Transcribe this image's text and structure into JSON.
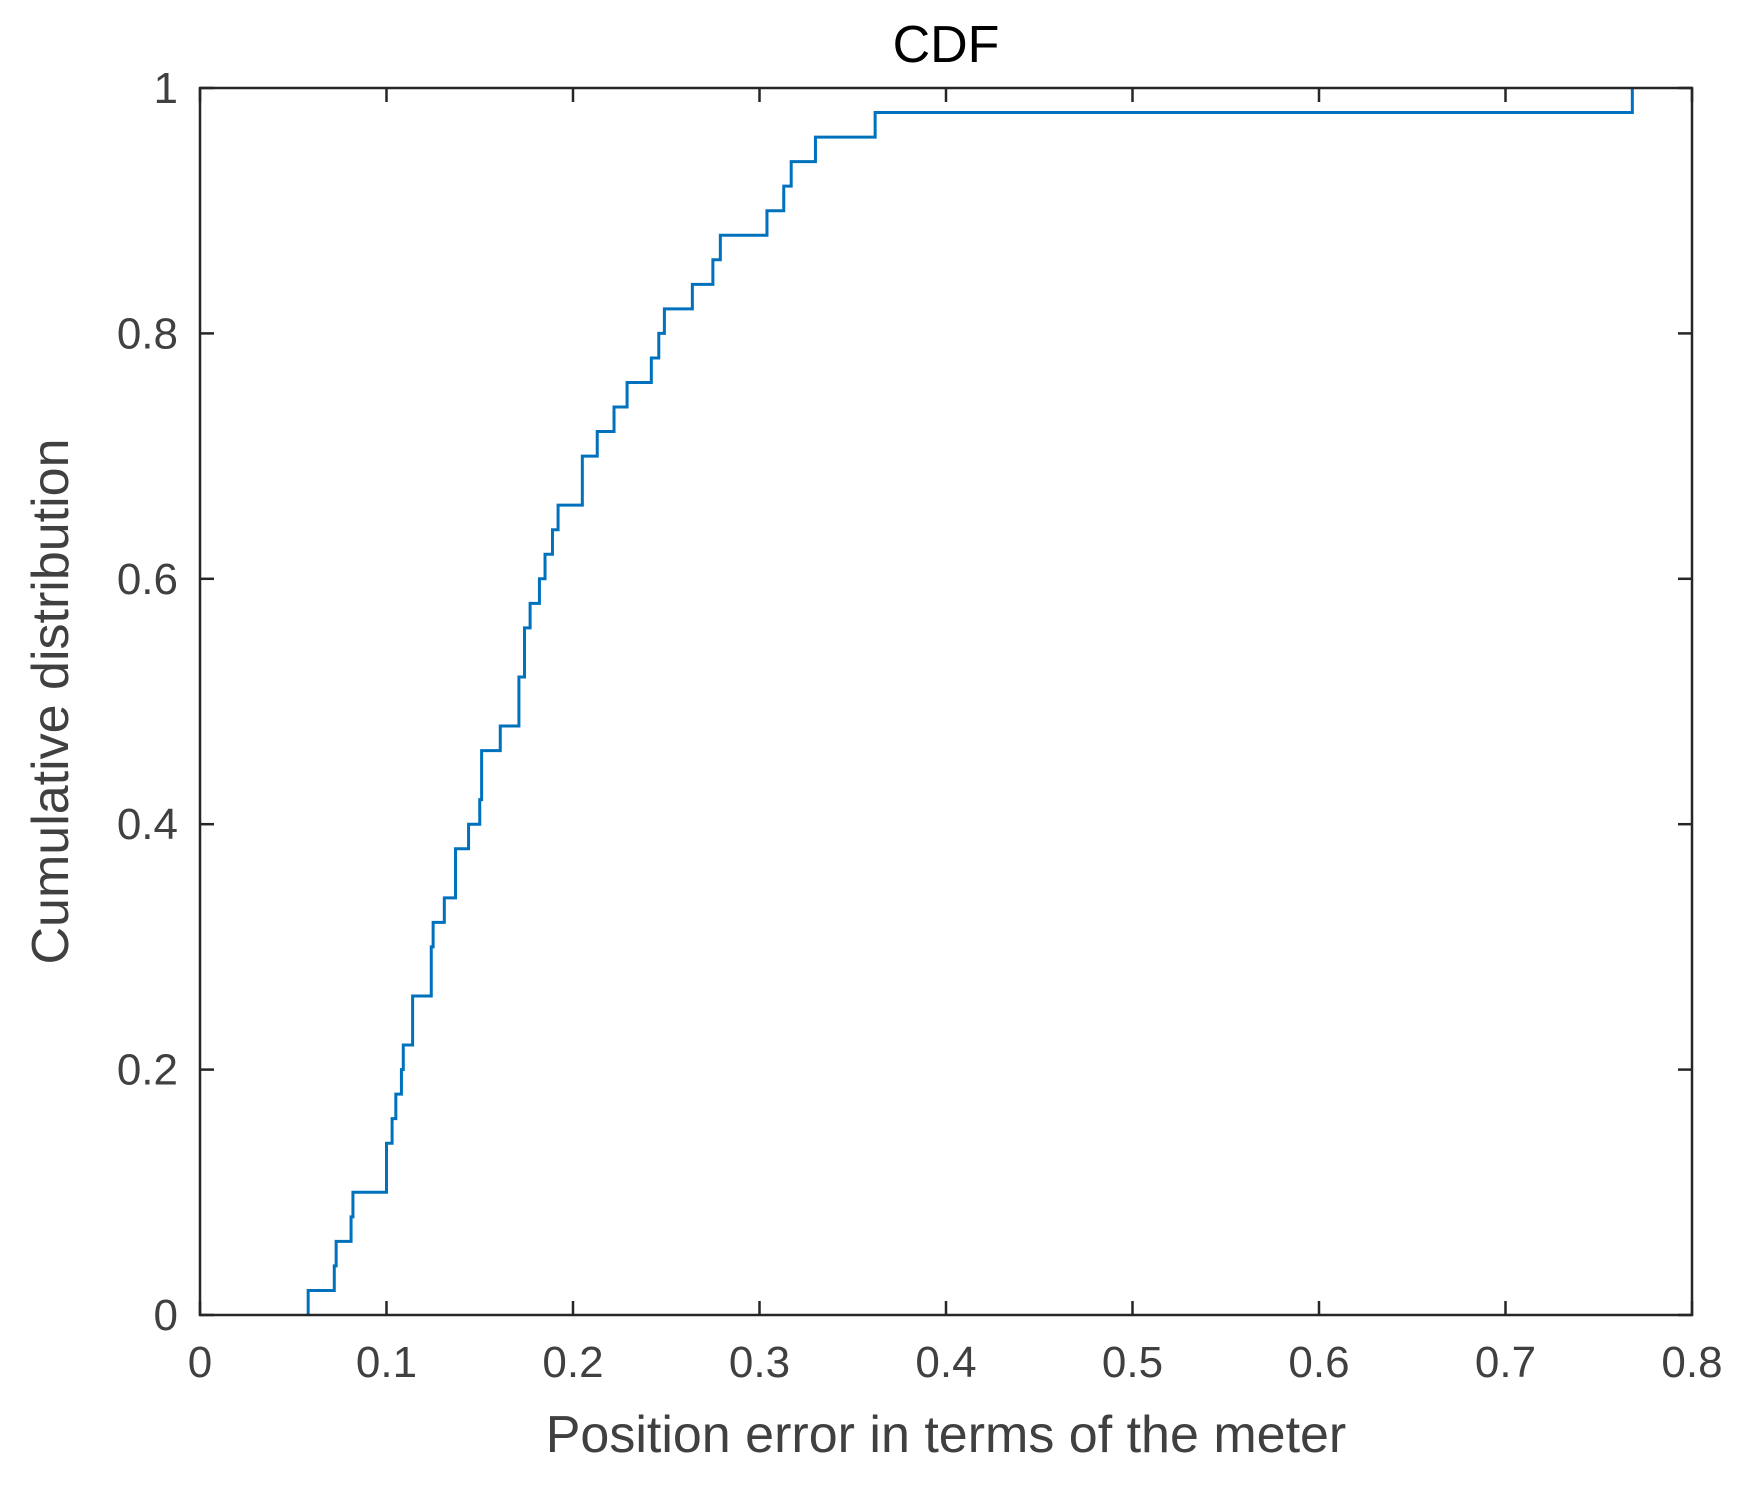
{
  "chart_data": {
    "type": "line",
    "step": true,
    "title": "CDF",
    "xlabel": "Position error in terms of the meter",
    "ylabel": "Cumulative distribution",
    "xlim": [
      0,
      0.8
    ],
    "ylim": [
      0,
      1
    ],
    "xticks": [
      "0",
      "0.1",
      "0.2",
      "0.3",
      "0.4",
      "0.5",
      "0.6",
      "0.7",
      "0.8"
    ],
    "yticks": [
      "0",
      "0.2",
      "0.4",
      "0.6",
      "0.8",
      "1"
    ],
    "grid": false,
    "line_color": "#0072BD",
    "series": [
      {
        "x": [
          0.058,
          0.072,
          0.073,
          0.081,
          0.082,
          0.1,
          0.103,
          0.105,
          0.108,
          0.109,
          0.114,
          0.124,
          0.125,
          0.131,
          0.137,
          0.144,
          0.15,
          0.151,
          0.161,
          0.171,
          0.174,
          0.177,
          0.182,
          0.185,
          0.189,
          0.192,
          0.205,
          0.213,
          0.222,
          0.229,
          0.242,
          0.243,
          0.246,
          0.249,
          0.264,
          0.275,
          0.277,
          0.279,
          0.304,
          0.313,
          0.317,
          0.33,
          0.362,
          0.768
        ],
        "y": [
          0.02,
          0.04,
          0.06,
          0.08,
          0.1,
          0.14,
          0.16,
          0.18,
          0.2,
          0.22,
          0.26,
          0.3,
          0.32,
          0.34,
          0.38,
          0.4,
          0.42,
          0.46,
          0.48,
          0.52,
          0.56,
          0.58,
          0.6,
          0.62,
          0.64,
          0.66,
          0.7,
          0.72,
          0.74,
          0.76,
          0.78,
          0.78,
          0.8,
          0.82,
          0.84,
          0.86,
          0.86,
          0.88,
          0.9,
          0.92,
          0.94,
          0.96,
          0.98,
          1.0
        ]
      }
    ]
  }
}
